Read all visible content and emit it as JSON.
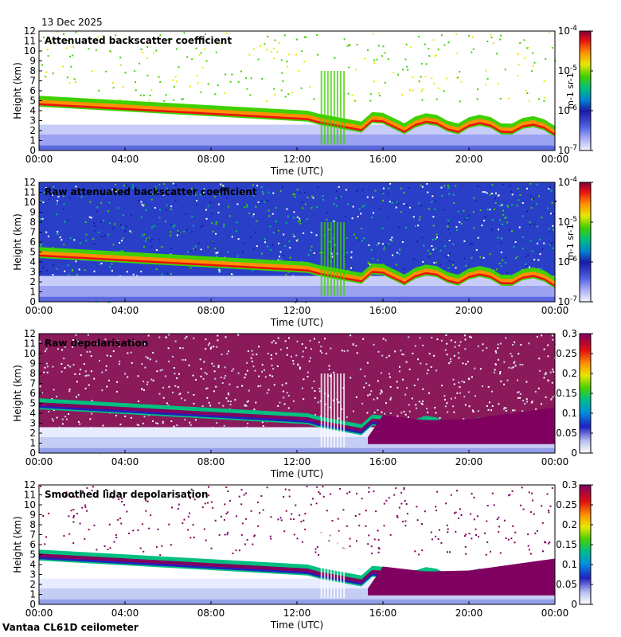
{
  "header": {
    "date": "13 Dec 2025"
  },
  "footer": {
    "station": "Vantaa CL61D ceilometer"
  },
  "chart_data": [
    {
      "type": "heatmap",
      "title": "Attenuated backscatter coefficient",
      "xlabel": "Time (UTC)",
      "ylabel": "Height (km)",
      "xlim": [
        0,
        24
      ],
      "ylim": [
        0,
        12
      ],
      "x_ticks": [
        "00:00",
        "04:00",
        "08:00",
        "12:00",
        "16:00",
        "20:00",
        "00:00"
      ],
      "y_ticks": [
        "0",
        "1",
        "2",
        "3",
        "4",
        "5",
        "6",
        "7",
        "8",
        "9",
        "10",
        "11",
        "12"
      ],
      "colorbar": {
        "scale": "log",
        "range": [
          1e-07,
          0.0001
        ],
        "tick_labels": [
          "10-7",
          "10-6",
          "10-5",
          "10-4"
        ],
        "units": "m-1 sr-1"
      }
    },
    {
      "type": "heatmap",
      "title": "Raw attenuated backscatter coefficient",
      "xlabel": "Time (UTC)",
      "ylabel": "Height (km)",
      "xlim": [
        0,
        24
      ],
      "ylim": [
        0,
        12
      ],
      "x_ticks": [
        "00:00",
        "04:00",
        "08:00",
        "12:00",
        "16:00",
        "20:00",
        "00:00"
      ],
      "y_ticks": [
        "0",
        "1",
        "2",
        "3",
        "4",
        "5",
        "6",
        "7",
        "8",
        "9",
        "10",
        "11",
        "12"
      ],
      "colorbar": {
        "scale": "log",
        "range": [
          1e-07,
          0.0001
        ],
        "tick_labels": [
          "10-7",
          "10-6",
          "10-5",
          "10-4"
        ],
        "units": "m-1 sr-1"
      }
    },
    {
      "type": "heatmap",
      "title": "Raw depolarisation",
      "xlabel": "Time (UTC)",
      "ylabel": "Height (km)",
      "xlim": [
        0,
        24
      ],
      "ylim": [
        0,
        12
      ],
      "x_ticks": [
        "00:00",
        "04:00",
        "08:00",
        "12:00",
        "16:00",
        "20:00",
        "00:00"
      ],
      "y_ticks": [
        "0",
        "1",
        "2",
        "3",
        "4",
        "5",
        "6",
        "7",
        "8",
        "9",
        "10",
        "11",
        "12"
      ],
      "colorbar": {
        "scale": "linear",
        "range": [
          0,
          0.3
        ],
        "tick_labels": [
          "0",
          "0.05",
          "0.1",
          "0.15",
          "0.2",
          "0.25",
          "0.3"
        ],
        "units": ""
      }
    },
    {
      "type": "heatmap",
      "title": "Smoothed lidar depolarisation",
      "xlabel": "Time (UTC)",
      "ylabel": "Height (km)",
      "xlim": [
        0,
        24
      ],
      "ylim": [
        0,
        12
      ],
      "x_ticks": [
        "00:00",
        "04:00",
        "08:00",
        "12:00",
        "16:00",
        "20:00",
        "00:00"
      ],
      "y_ticks": [
        "0",
        "1",
        "2",
        "3",
        "4",
        "5",
        "6",
        "7",
        "8",
        "9",
        "10",
        "11",
        "12"
      ],
      "colorbar": {
        "scale": "linear",
        "range": [
          0,
          0.3
        ],
        "tick_labels": [
          "0",
          "0.05",
          "0.1",
          "0.15",
          "0.2",
          "0.25",
          "0.3"
        ],
        "units": ""
      }
    }
  ]
}
